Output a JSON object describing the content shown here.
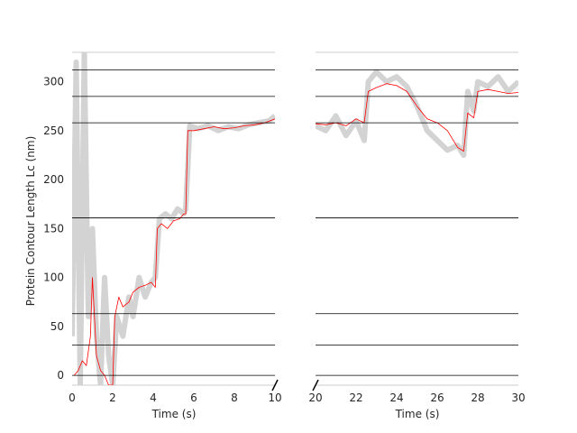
{
  "chart_data": {
    "type": "line",
    "ylabel": "Protein Contour Length Lc (nm)",
    "ylim": [
      -10,
      330
    ],
    "yticks": [
      0,
      50,
      100,
      150,
      200,
      250,
      300
    ],
    "reference_lines": [
      0,
      31,
      63,
      161,
      258,
      285,
      312
    ],
    "colors": {
      "raw": "#d3d3d3",
      "smoothed": "#ff0000",
      "reference": "#000000",
      "text": "#262626"
    },
    "grid": false,
    "broken_x_axis": true,
    "panels": [
      {
        "xlabel": "Time (s)",
        "xlim": [
          0,
          10
        ],
        "xticks": [
          0,
          2,
          4,
          6,
          8,
          10
        ],
        "series": [
          {
            "role": "raw",
            "x": [
              0,
              0.2,
              0.4,
              0.6,
              0.8,
              1.0,
              1.2,
              1.4,
              1.6,
              1.8,
              2.0,
              2.2,
              2.5,
              2.8,
              3.0,
              3.3,
              3.6,
              3.9,
              4.1,
              4.3,
              4.6,
              4.9,
              5.2,
              5.5,
              5.6,
              5.8,
              6.2,
              6.7,
              7.2,
              7.7,
              8.2,
              8.7,
              9.2,
              9.7,
              10.0
            ],
            "y": [
              40,
              320,
              -10,
              330,
              60,
              150,
              40,
              -10,
              100,
              20,
              -10,
              60,
              40,
              80,
              60,
              100,
              80,
              95,
              100,
              160,
              165,
              160,
              170,
              165,
              170,
              255,
              252,
              255,
              250,
              254,
              252,
              256,
              258,
              260,
              265
            ]
          },
          {
            "role": "smoothed",
            "x": [
              0.1,
              0.3,
              0.5,
              0.7,
              0.9,
              1.0,
              1.1,
              1.2,
              1.4,
              1.6,
              1.8,
              2.0,
              2.1,
              2.3,
              2.5,
              2.8,
              3.0,
              3.3,
              3.6,
              3.9,
              4.1,
              4.2,
              4.4,
              4.7,
              5.0,
              5.3,
              5.5,
              5.6,
              5.7,
              6.0,
              6.5,
              7.0,
              7.5,
              8.0,
              8.5,
              9.0,
              9.5,
              10.0
            ],
            "y": [
              0,
              5,
              15,
              10,
              40,
              100,
              60,
              20,
              5,
              0,
              -10,
              -10,
              60,
              80,
              70,
              75,
              85,
              90,
              92,
              95,
              90,
              150,
              155,
              150,
              158,
              160,
              165,
              165,
              250,
              250,
              252,
              254,
              252,
              253,
              255,
              256,
              258,
              262
            ]
          }
        ]
      },
      {
        "xlabel": "Time (s)",
        "xlim": [
          20,
          30
        ],
        "xticks": [
          20,
          22,
          24,
          26,
          28,
          30
        ],
        "series": [
          {
            "role": "raw",
            "x": [
              20,
              20.5,
              21,
              21.5,
              22,
              22.4,
              22.6,
              23,
              23.5,
              24,
              24.5,
              25,
              25.5,
              26,
              26.5,
              27,
              27.3,
              27.5,
              27.8,
              28,
              28.5,
              29,
              29.5,
              30
            ],
            "y": [
              255,
              250,
              265,
              245,
              260,
              240,
              300,
              310,
              300,
              305,
              295,
              275,
              250,
              240,
              230,
              235,
              225,
              290,
              270,
              300,
              295,
              305,
              290,
              300
            ]
          },
          {
            "role": "smoothed",
            "x": [
              20,
              20.5,
              21,
              21.5,
              22,
              22.4,
              22.6,
              23,
              23.5,
              24,
              24.5,
              25,
              25.5,
              26,
              26.5,
              27,
              27.3,
              27.5,
              27.8,
              28,
              28.5,
              29,
              29.5,
              30
            ],
            "y": [
              257,
              256,
              258,
              255,
              262,
              258,
              290,
              294,
              298,
              296,
              290,
              275,
              262,
              258,
              250,
              233,
              229,
              268,
              263,
              290,
              292,
              290,
              288,
              289
            ]
          }
        ]
      }
    ]
  }
}
